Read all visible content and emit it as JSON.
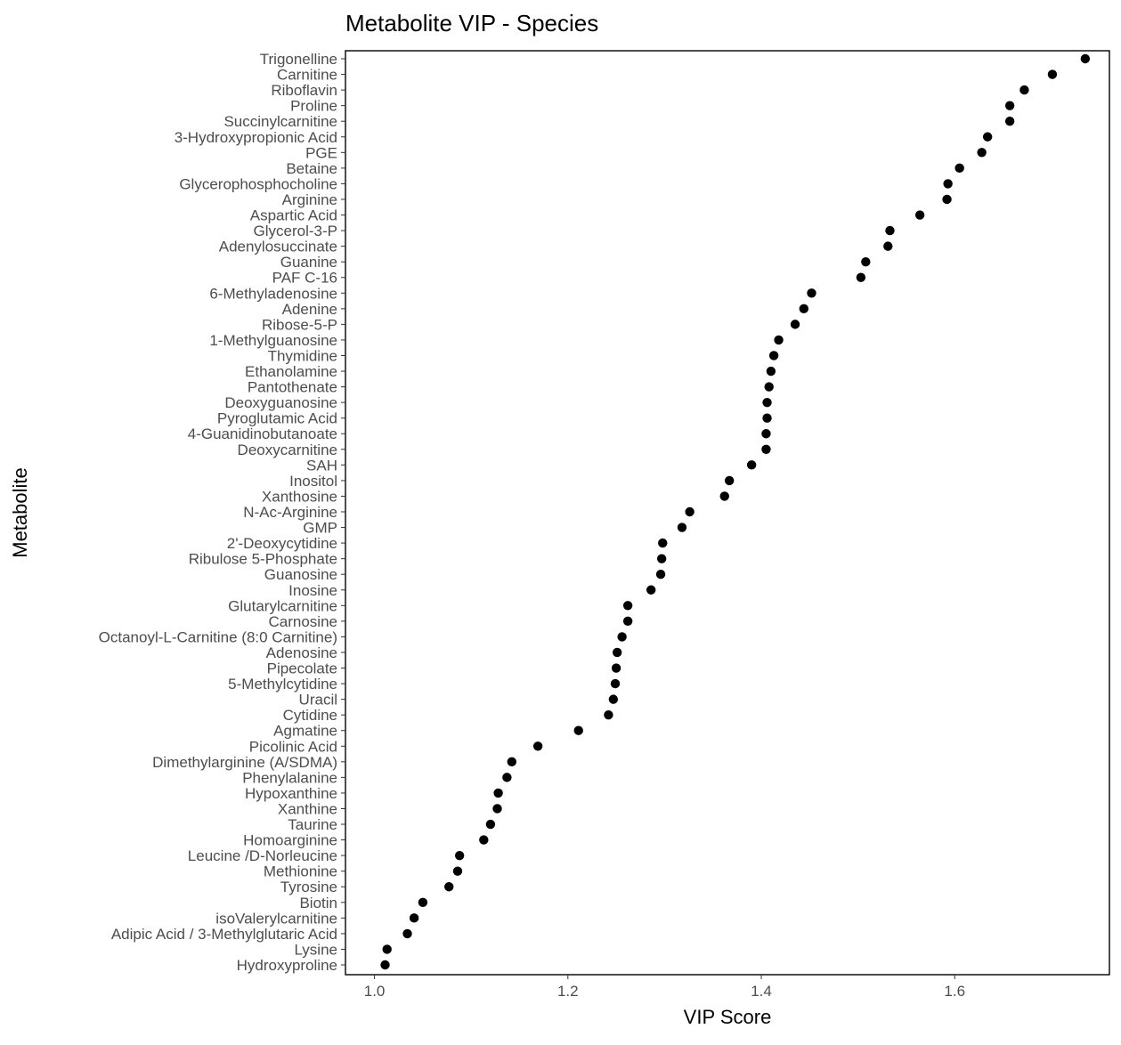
{
  "chart_data": {
    "type": "scatter",
    "title": "Metabolite VIP - Species",
    "xlabel": "VIP Score",
    "ylabel": "Metabolite",
    "xlim": [
      0.97,
      1.76
    ],
    "x_ticks": [
      1.0,
      1.2,
      1.4,
      1.6
    ],
    "x_tick_labels": [
      "1.0",
      "1.2",
      "1.4",
      "1.6"
    ],
    "grid": false,
    "legend": "none",
    "point_color": "#000000",
    "categories": [
      "Trigonelline",
      "Carnitine",
      "Riboflavin",
      "Proline",
      "Succinylcarnitine",
      "3-Hydroxypropionic Acid",
      "PGE",
      "Betaine",
      "Glycerophosphocholine",
      "Arginine",
      "Aspartic Acid",
      "Glycerol-3-P",
      "Adenylosuccinate",
      "Guanine",
      "PAF C-16",
      "6-Methyladenosine",
      "Adenine",
      "Ribose-5-P",
      "1-Methylguanosine",
      "Thymidine",
      "Ethanolamine",
      "Pantothenate",
      "Deoxyguanosine",
      "Pyroglutamic Acid",
      "4-Guanidinobutanoate",
      "Deoxycarnitine",
      "SAH",
      "Inositol",
      "Xanthosine",
      "N-Ac-Arginine",
      "GMP",
      "2'-Deoxycytidine",
      "Ribulose 5-Phosphate",
      "Guanosine",
      "Inosine",
      "Glutarylcarnitine",
      "Carnosine",
      "Octanoyl-L-Carnitine (8:0 Carnitine)",
      "Adenosine",
      "Pipecolate",
      "5-Methylcytidine",
      "Uracil",
      "Cytidine",
      "Agmatine",
      "Picolinic Acid",
      "Dimethylarginine (A/SDMA)",
      "Phenylalanine",
      "Hypoxanthine",
      "Xanthine",
      "Taurine",
      "Homoarginine",
      "Leucine /D-Norleucine",
      "Methionine",
      "Tyrosine",
      "Biotin",
      "isoValerylcarnitine",
      "Adipic Acid / 3-Methylglutaric Acid",
      "Lysine",
      "Hydroxyproline"
    ],
    "values": [
      1.735,
      1.701,
      1.672,
      1.657,
      1.657,
      1.634,
      1.628,
      1.605,
      1.593,
      1.592,
      1.564,
      1.533,
      1.531,
      1.508,
      1.503,
      1.452,
      1.444,
      1.435,
      1.418,
      1.413,
      1.41,
      1.408,
      1.406,
      1.406,
      1.405,
      1.405,
      1.39,
      1.367,
      1.362,
      1.326,
      1.318,
      1.298,
      1.297,
      1.296,
      1.286,
      1.262,
      1.262,
      1.256,
      1.251,
      1.25,
      1.249,
      1.247,
      1.242,
      1.211,
      1.169,
      1.142,
      1.137,
      1.128,
      1.127,
      1.12,
      1.113,
      1.088,
      1.086,
      1.077,
      1.05,
      1.041,
      1.034,
      1.013,
      1.011
    ]
  }
}
